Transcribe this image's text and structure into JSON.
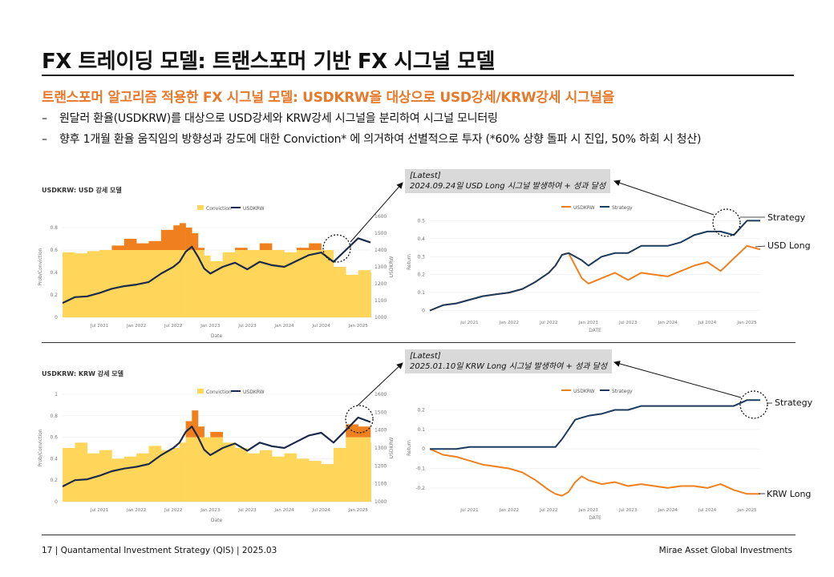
{
  "header": {
    "title": "FX 트레이딩 모델: 트랜스포머 기반 FX 시그널 모델",
    "subtitle": "트랜스포머 알고리즘 적용한 FX 시그널 모델: USDKRW을 대상으로 USD강세/KRW강세 시그널을",
    "bullets": [
      "원달러 환율(USDKRW)를 대상으로 USD강세와 KRW강세 시그널을 분리하여 시그널 모니터링",
      "향후 1개월 환율 움직임의 방향성과 강도에 대한 Conviction* 에 의거하여 선별적으로 투자 (*60% 상향 돌파 시 진입, 50% 하회 시 청산)"
    ],
    "bullet_dash": "–"
  },
  "footer": {
    "left": "17 | Quantamental Investment Strategy (QIS) | 2025.03",
    "right": "Mirae Asset Global Investments"
  },
  "callouts": {
    "top": {
      "line1": "[Latest]",
      "line2": "2024.09.24일 USD Long 시그널 발생하여 + 성과 달성"
    },
    "bottom": {
      "line1": "[Latest]",
      "line2": "2025.01.10일 KRW Long 시그널 발생하여 + 성과 달성"
    }
  },
  "external_labels": {
    "top_strategy": "Strategy",
    "top_usd_long": "USD Long",
    "bottom_strategy": "Strategy",
    "bottom_krw_long": "KRW Long"
  },
  "colors": {
    "conviction_base": "#ffd65a",
    "conviction_high": "#f0801e",
    "usdkrw_line": "#1b2a4a",
    "strategy_line": "#1b3a5c",
    "usdkrw_return": "#f0801e",
    "callout_bg": "#d9d9d9",
    "subtitle": "#e8782a"
  },
  "chart_data": [
    {
      "type": "area",
      "title": "USDKRW: USD 강세 모델",
      "legend": [
        "Conviction",
        "USDKRW"
      ],
      "legend_placement": "top",
      "xlabel": "Date",
      "ylabel_left": "Prob/Conviction",
      "ylabel_right": "USDKRW",
      "x_ticks": [
        "Jul 2021",
        "Jan 2022",
        "Jul 2022",
        "Jan 2023",
        "Jul 2023",
        "Jan 2024",
        "Jul 2024",
        "Jan 2025"
      ],
      "y_left_ticks": [
        "0",
        "0.2",
        "0.4",
        "0.6",
        "0.8"
      ],
      "y_right_ticks": [
        "1000",
        "1100",
        "1200",
        "1300",
        "1400",
        "1500",
        "1600"
      ],
      "ylim_left": [
        0,
        0.9
      ],
      "ylim_right": [
        1000,
        1600
      ],
      "threshold": 0.6,
      "dates": [
        "2021-01",
        "2021-03",
        "2021-05",
        "2021-07",
        "2021-09",
        "2021-11",
        "2022-01",
        "2022-03",
        "2022-05",
        "2022-07",
        "2022-08",
        "2022-09",
        "2022-10",
        "2022-11",
        "2022-12",
        "2023-01",
        "2023-03",
        "2023-05",
        "2023-07",
        "2023-09",
        "2023-11",
        "2024-01",
        "2024-03",
        "2024-05",
        "2024-07",
        "2024-09",
        "2024-11",
        "2025-01",
        "2025-03"
      ],
      "conviction": [
        0.58,
        0.57,
        0.59,
        0.6,
        0.64,
        0.7,
        0.66,
        0.68,
        0.78,
        0.82,
        0.84,
        0.8,
        0.75,
        0.62,
        0.55,
        0.5,
        0.58,
        0.62,
        0.6,
        0.66,
        0.6,
        0.58,
        0.62,
        0.66,
        0.6,
        0.45,
        0.38,
        0.42,
        0.4
      ],
      "usdkrw": [
        1085,
        1120,
        1125,
        1145,
        1170,
        1185,
        1195,
        1210,
        1260,
        1300,
        1330,
        1390,
        1420,
        1360,
        1290,
        1260,
        1300,
        1325,
        1285,
        1330,
        1310,
        1300,
        1335,
        1370,
        1385,
        1330,
        1400,
        1470,
        1445
      ]
    },
    {
      "type": "line",
      "title": "",
      "legend": [
        "USDKRW",
        "Strategy"
      ],
      "legend_placement": "top",
      "xlabel": "DATE",
      "ylabel": "Return",
      "x_ticks": [
        "Jul 2021",
        "Jan 2022",
        "Jul 2022",
        "Jan 2023",
        "Jul 2023",
        "Jan 2024",
        "Jul 2024",
        "Jan 2025"
      ],
      "y_ticks": [
        "0",
        "0.1",
        "0.2",
        "0.3",
        "0.4",
        "0.5"
      ],
      "ylim": [
        -0.02,
        0.56
      ],
      "dates": [
        "2021-01",
        "2021-03",
        "2021-05",
        "2021-07",
        "2021-09",
        "2021-11",
        "2022-01",
        "2022-03",
        "2022-05",
        "2022-07",
        "2022-08",
        "2022-09",
        "2022-10",
        "2022-11",
        "2022-12",
        "2023-01",
        "2023-03",
        "2023-05",
        "2023-07",
        "2023-09",
        "2023-11",
        "2024-01",
        "2024-03",
        "2024-05",
        "2024-07",
        "2024-09",
        "2024-11",
        "2025-01",
        "2025-03"
      ],
      "series": [
        {
          "name": "USDKRW",
          "values": [
            0.0,
            0.03,
            0.04,
            0.06,
            0.08,
            0.09,
            0.1,
            0.12,
            0.16,
            0.21,
            0.25,
            0.31,
            0.32,
            0.25,
            0.18,
            0.15,
            0.18,
            0.21,
            0.17,
            0.21,
            0.2,
            0.19,
            0.22,
            0.25,
            0.27,
            0.22,
            0.29,
            0.36,
            0.34
          ]
        },
        {
          "name": "Strategy",
          "values": [
            0.0,
            0.03,
            0.04,
            0.06,
            0.08,
            0.09,
            0.1,
            0.12,
            0.16,
            0.21,
            0.25,
            0.31,
            0.32,
            0.3,
            0.28,
            0.25,
            0.3,
            0.32,
            0.32,
            0.36,
            0.36,
            0.36,
            0.38,
            0.42,
            0.44,
            0.44,
            0.42,
            0.5,
            0.5
          ]
        }
      ]
    },
    {
      "type": "area",
      "title": "USDKRW: KRW 강세 모델",
      "legend": [
        "Conviction",
        "USDKRW"
      ],
      "legend_placement": "top",
      "xlabel": "Date",
      "ylabel_left": "Prob/Conviction",
      "ylabel_right": "USDKRW",
      "x_ticks": [
        "Jul 2021",
        "Jan 2022",
        "Jul 2022",
        "Jan 2023",
        "Jul 2023",
        "Jan 2024",
        "Jul 2024",
        "Jan 2025"
      ],
      "y_left_ticks": [
        "0",
        "0.2",
        "0.4",
        "0.6",
        "0.8",
        "1"
      ],
      "y_right_ticks": [
        "1000",
        "1100",
        "1200",
        "1300",
        "1400",
        "1500",
        "1600"
      ],
      "ylim_left": [
        0,
        1.0
      ],
      "ylim_right": [
        1000,
        1600
      ],
      "threshold": 0.6,
      "dates": [
        "2021-01",
        "2021-03",
        "2021-05",
        "2021-07",
        "2021-09",
        "2021-11",
        "2022-01",
        "2022-03",
        "2022-05",
        "2022-07",
        "2022-08",
        "2022-09",
        "2022-10",
        "2022-11",
        "2022-12",
        "2023-01",
        "2023-03",
        "2023-05",
        "2023-07",
        "2023-09",
        "2023-11",
        "2024-01",
        "2024-03",
        "2024-05",
        "2024-07",
        "2024-09",
        "2024-11",
        "2025-01",
        "2025-03"
      ],
      "conviction": [
        0.5,
        0.55,
        0.45,
        0.48,
        0.4,
        0.42,
        0.45,
        0.52,
        0.48,
        0.5,
        0.55,
        0.75,
        0.85,
        0.7,
        0.6,
        0.65,
        0.55,
        0.5,
        0.45,
        0.48,
        0.42,
        0.45,
        0.4,
        0.38,
        0.35,
        0.5,
        0.72,
        0.7,
        0.55
      ],
      "usdkrw": [
        1085,
        1120,
        1125,
        1145,
        1170,
        1185,
        1195,
        1210,
        1260,
        1300,
        1330,
        1390,
        1420,
        1360,
        1290,
        1260,
        1300,
        1325,
        1285,
        1330,
        1310,
        1300,
        1335,
        1370,
        1385,
        1330,
        1400,
        1470,
        1445
      ]
    },
    {
      "type": "line",
      "title": "",
      "legend": [
        "USDKRW",
        "Strategy"
      ],
      "legend_placement": "top",
      "xlabel": "DATE",
      "ylabel": "Return",
      "x_ticks": [
        "Jul 2021",
        "Jan 2022",
        "Jul 2022",
        "Jan 2023",
        "Jul 2023",
        "Jan 2024",
        "Jul 2024",
        "Jan 2025"
      ],
      "y_ticks": [
        "-0.2",
        "-0.1",
        "0",
        "0.1",
        "0.2"
      ],
      "ylim": [
        -0.27,
        0.28
      ],
      "dates": [
        "2021-01",
        "2021-03",
        "2021-05",
        "2021-07",
        "2021-09",
        "2021-11",
        "2022-01",
        "2022-03",
        "2022-05",
        "2022-07",
        "2022-08",
        "2022-09",
        "2022-10",
        "2022-11",
        "2022-12",
        "2023-01",
        "2023-03",
        "2023-05",
        "2023-07",
        "2023-09",
        "2023-11",
        "2024-01",
        "2024-03",
        "2024-05",
        "2024-07",
        "2024-09",
        "2024-11",
        "2025-01",
        "2025-03"
      ],
      "series": [
        {
          "name": "USDKRW",
          "values": [
            0.0,
            -0.03,
            -0.04,
            -0.06,
            -0.08,
            -0.09,
            -0.1,
            -0.12,
            -0.16,
            -0.21,
            -0.23,
            -0.24,
            -0.22,
            -0.17,
            -0.14,
            -0.16,
            -0.18,
            -0.17,
            -0.19,
            -0.18,
            -0.19,
            -0.2,
            -0.19,
            -0.19,
            -0.2,
            -0.18,
            -0.21,
            -0.23,
            -0.23
          ]
        },
        {
          "name": "Strategy",
          "values": [
            0.0,
            0.0,
            0.0,
            0.01,
            0.01,
            0.01,
            0.01,
            0.01,
            0.01,
            0.01,
            0.01,
            0.05,
            0.1,
            0.15,
            0.16,
            0.17,
            0.18,
            0.2,
            0.2,
            0.22,
            0.22,
            0.22,
            0.22,
            0.22,
            0.22,
            0.22,
            0.22,
            0.25,
            0.25
          ]
        }
      ]
    }
  ]
}
